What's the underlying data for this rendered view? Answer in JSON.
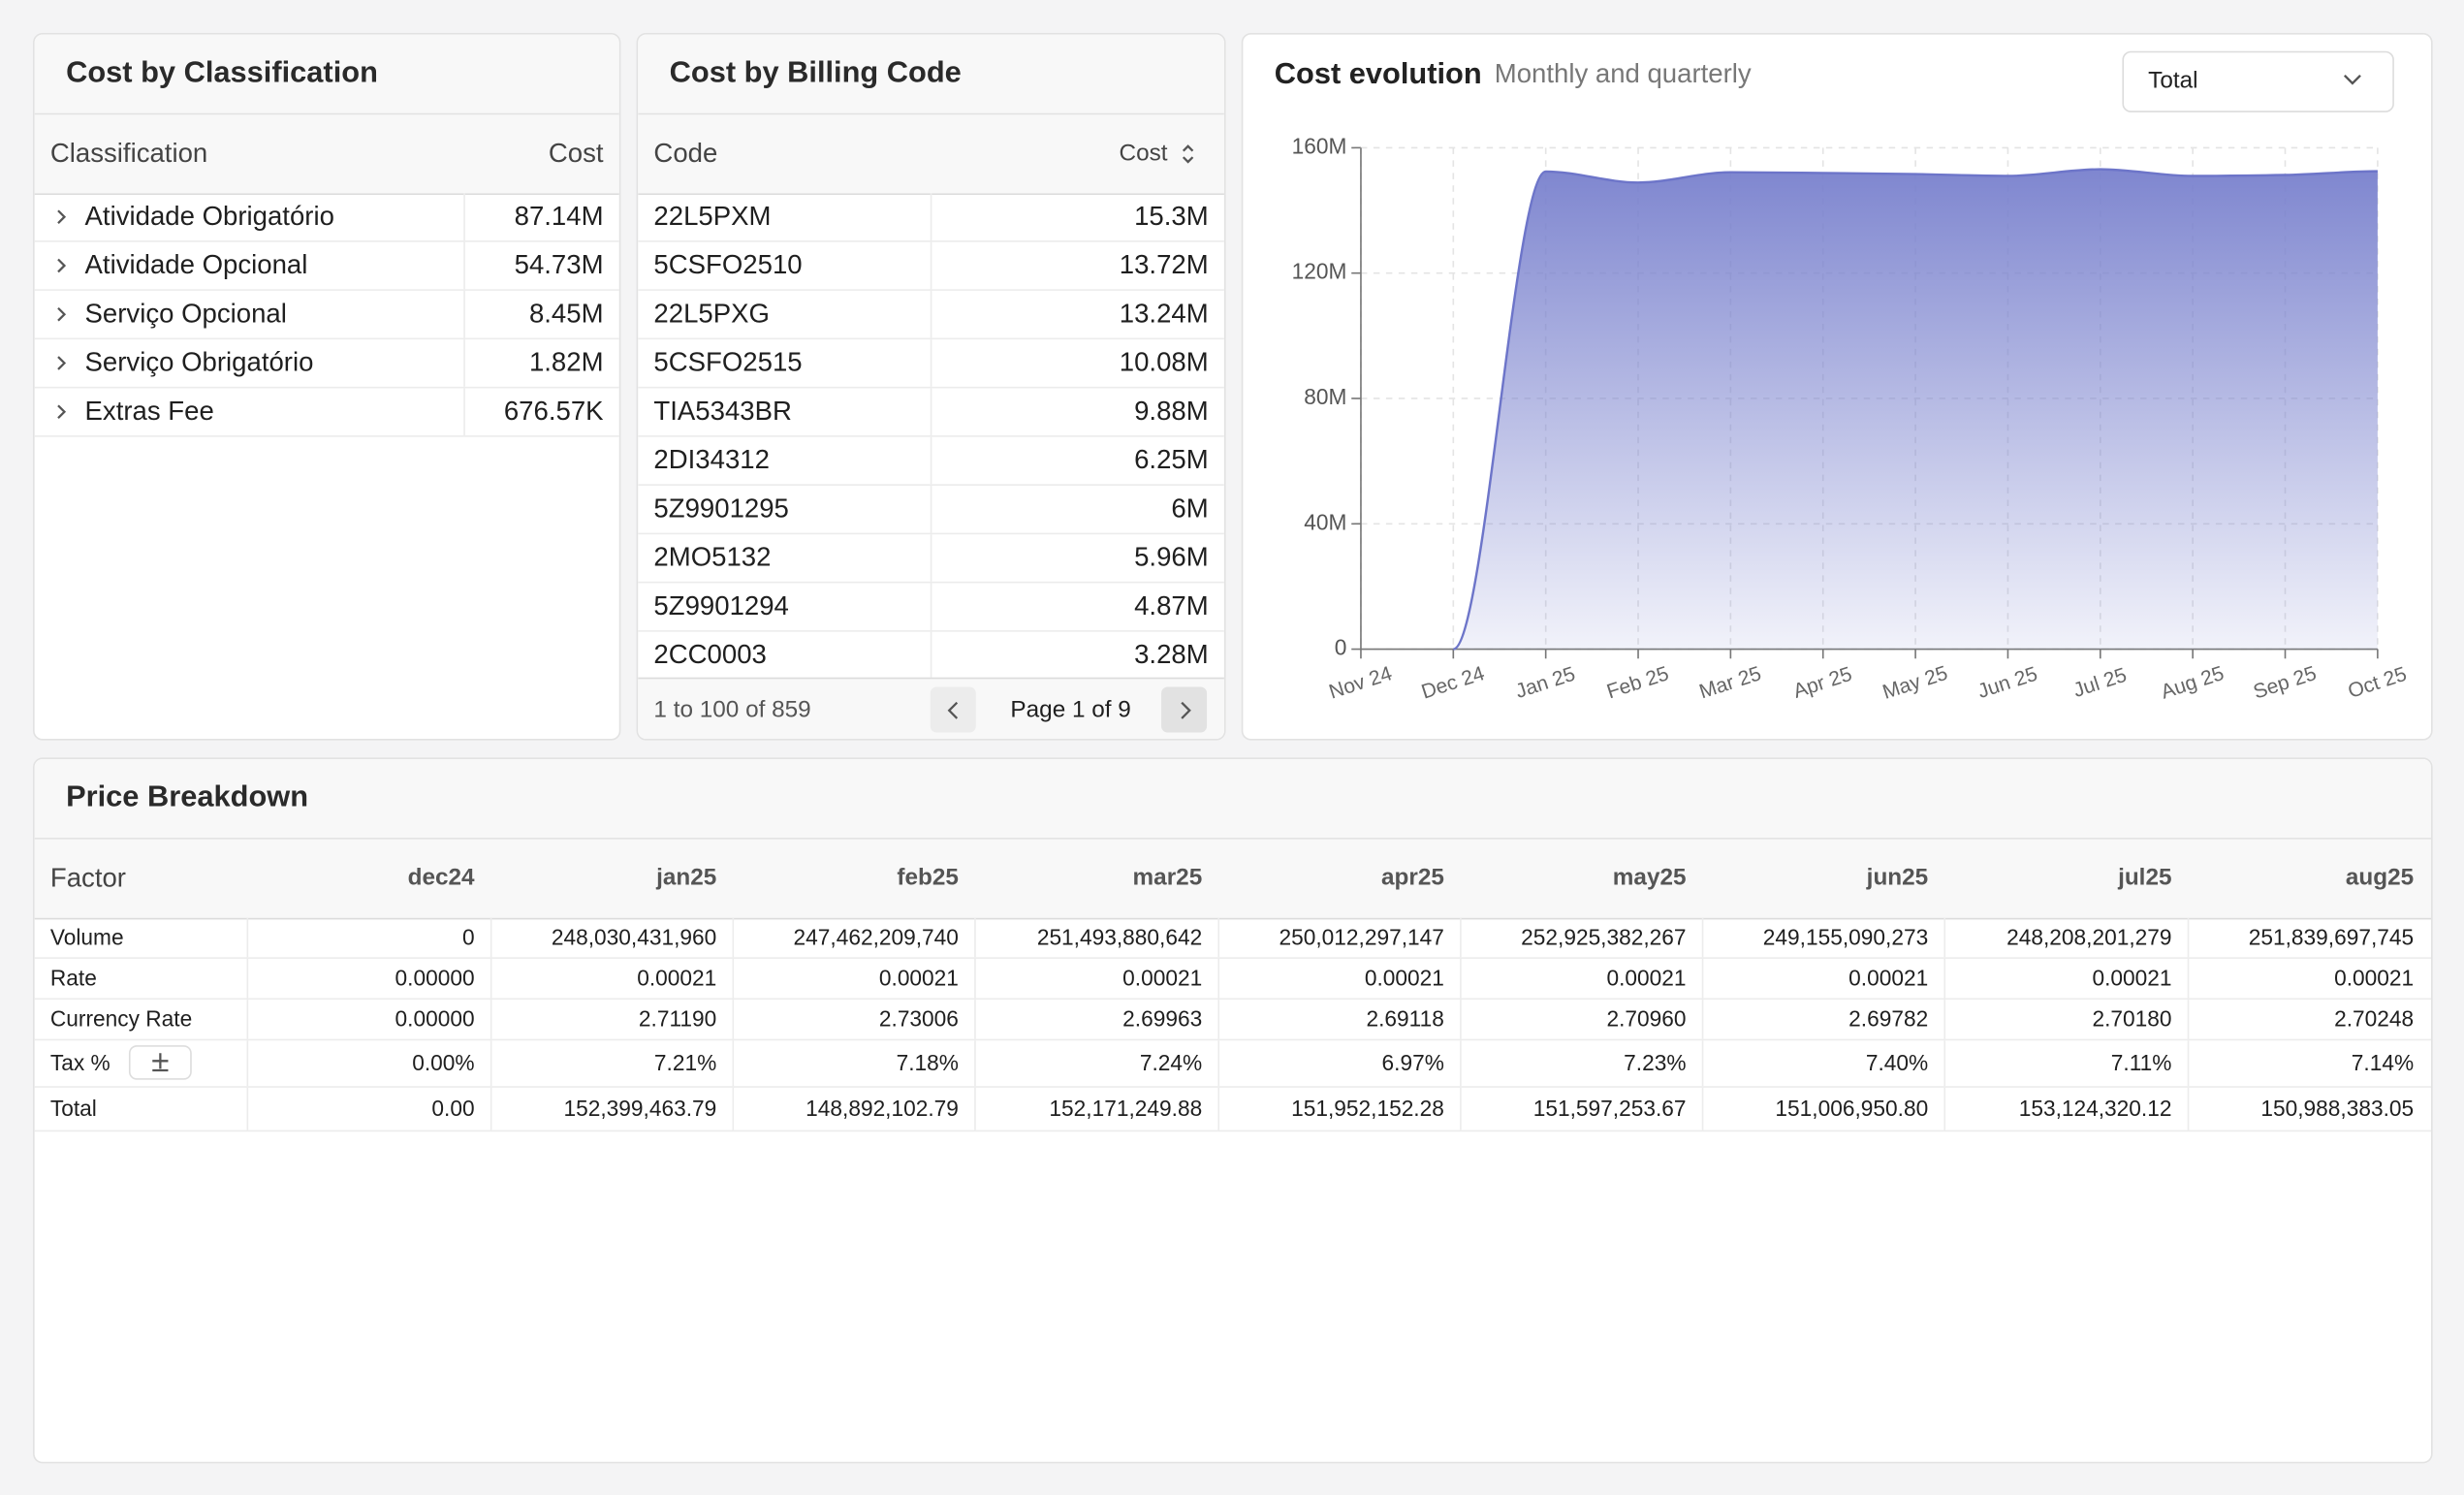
{
  "classification": {
    "title": "Cost by Classification",
    "columns": [
      "Classification",
      "Cost"
    ],
    "rows": [
      [
        "Atividade Obrigatório",
        "87.14M"
      ],
      [
        "Atividade Opcional",
        "54.73M"
      ],
      [
        "Serviço Opcional",
        "8.45M"
      ],
      [
        "Serviço Obrigatório",
        "1.82M"
      ],
      [
        "Extras Fee",
        "676.57K"
      ]
    ]
  },
  "billing": {
    "title": "Cost by Billing Code",
    "columns": [
      "Code",
      "Cost"
    ],
    "rows": [
      [
        "22L5PXM",
        "15.3M"
      ],
      [
        "5CSFO2510",
        "13.72M"
      ],
      [
        "22L5PXG",
        "13.24M"
      ],
      [
        "5CSFO2515",
        "10.08M"
      ],
      [
        "TIA5343BR",
        "9.88M"
      ],
      [
        "2DI34312",
        "6.25M"
      ],
      [
        "5Z9901295",
        "6M"
      ],
      [
        "2MO5132",
        "5.96M"
      ],
      [
        "5Z9901294",
        "4.87M"
      ],
      [
        "2CC0003",
        "3.28M"
      ]
    ],
    "footer": {
      "range": "1 to 100 of 859",
      "page": "Page 1 of 9"
    }
  },
  "evolution_filter": "Total",
  "chart_data": {
    "type": "area",
    "title": "Cost evolution",
    "subtitle": "Monthly and quarterly",
    "categories": [
      "Nov 24",
      "Dec 24",
      "Jan 25",
      "Feb 25",
      "Mar 25",
      "Apr 25",
      "May 25",
      "Jun 25",
      "Jul 25",
      "Aug 25",
      "Sep 25",
      "Oct 25"
    ],
    "values": [
      null,
      0,
      152399463.79,
      148892102.79,
      152171249.88,
      151952152.28,
      151597253.67,
      151006950.8,
      153124320.12,
      150988383.05,
      151300000,
      152500000
    ],
    "color": "#6d75c9",
    "ylim": [
      0,
      160000000
    ],
    "yticks": [
      {
        "value": 0,
        "label": "0"
      },
      {
        "value": 40000000,
        "label": "40M"
      },
      {
        "value": 80000000,
        "label": "80M"
      },
      {
        "value": 120000000,
        "label": "120M"
      },
      {
        "value": 160000000,
        "label": "160M"
      }
    ],
    "grid": true
  },
  "price_breakdown": {
    "title": "Price Breakdown",
    "columns": [
      "Factor",
      "dec24",
      "jan25",
      "feb25",
      "mar25",
      "apr25",
      "may25",
      "jun25",
      "jul25",
      "aug25"
    ],
    "rows": [
      [
        "Volume",
        "0",
        "248,030,431,960",
        "247,462,209,740",
        "251,493,880,642",
        "250,012,297,147",
        "252,925,382,267",
        "249,155,090,273",
        "248,208,201,279",
        "251,839,697,745"
      ],
      [
        "Rate",
        "0.00000",
        "0.00021",
        "0.00021",
        "0.00021",
        "0.00021",
        "0.00021",
        "0.00021",
        "0.00021",
        "0.00021"
      ],
      [
        "Currency Rate",
        "0.00000",
        "2.71190",
        "2.73006",
        "2.69963",
        "2.69118",
        "2.70960",
        "2.69782",
        "2.70180",
        "2.70248"
      ],
      [
        "Tax %",
        "0.00%",
        "7.21%",
        "7.18%",
        "7.24%",
        "6.97%",
        "7.23%",
        "7.40%",
        "7.11%",
        "7.14%"
      ],
      [
        "Total",
        "0.00",
        "152,399,463.79",
        "148,892,102.79",
        "152,171,249.88",
        "151,952,152.28",
        "151,597,253.67",
        "151,006,950.80",
        "153,124,320.12",
        "150,988,383.05"
      ]
    ]
  }
}
